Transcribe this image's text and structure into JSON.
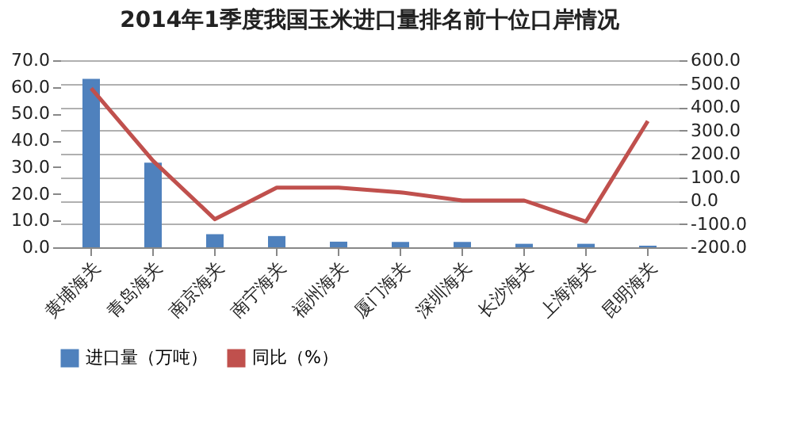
{
  "chart_data": {
    "type": "bar",
    "title": "2014年1季度我国玉米进口量排名前十位口岸情况",
    "categories": [
      "黄埔海关",
      "青岛海关",
      "南京海关",
      "南宁海关",
      "福州海关",
      "厦门海关",
      "深圳海关",
      "长沙海关",
      "上海海关",
      "昆明海关"
    ],
    "series": [
      {
        "name": "进口量（万吨）",
        "color": "#4f81bd",
        "values": [
          63,
          31.7,
          4.9,
          4.2,
          2.1,
          2.0,
          2.0,
          1.3,
          1.3,
          0.6
        ]
      },
      {
        "name": "同比（%）",
        "type": "line",
        "axis": "y2",
        "color": "#c0504d",
        "values": [
          480,
          170,
          -80,
          55,
          55,
          35,
          0,
          0,
          -90,
          340
        ]
      }
    ],
    "ylim": [
      0,
      70
    ],
    "yticks": [
      {
        "value": 0,
        "label": "0.0"
      },
      {
        "value": 10,
        "label": "10.0"
      },
      {
        "value": 20,
        "label": "20.0"
      },
      {
        "value": 30,
        "label": "30.0"
      },
      {
        "value": 40,
        "label": "40.0"
      },
      {
        "value": 50,
        "label": "50.0"
      },
      {
        "value": 60,
        "label": "60.0"
      },
      {
        "value": 70,
        "label": "70.0"
      }
    ],
    "y2lim": [
      -200,
      600
    ],
    "y2ticks": [
      {
        "value": -200,
        "label": "-200.0"
      },
      {
        "value": -100,
        "label": "-100.0"
      },
      {
        "value": 0,
        "label": "0.0"
      },
      {
        "value": 100,
        "label": "100.0"
      },
      {
        "value": 200,
        "label": "200.0"
      },
      {
        "value": 300,
        "label": "300.0"
      },
      {
        "value": 400,
        "label": "400.0"
      },
      {
        "value": 500,
        "label": "500.0"
      },
      {
        "value": 600,
        "label": "600.0"
      }
    ],
    "grid": true,
    "legend": "bottom",
    "marker": "none"
  }
}
